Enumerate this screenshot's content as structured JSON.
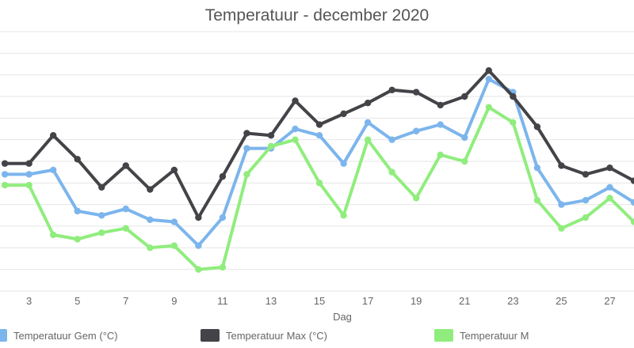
{
  "chart_data": {
    "type": "line",
    "title": "Temperatuur - december 2020",
    "xlabel": "Dag",
    "ylabel": "",
    "x": [
      2,
      3,
      4,
      5,
      6,
      7,
      8,
      9,
      10,
      11,
      12,
      13,
      14,
      15,
      16,
      17,
      18,
      19,
      20,
      21,
      22,
      23,
      24,
      25,
      26,
      27,
      28
    ],
    "x_tick_labels": [
      "3",
      "5",
      "7",
      "9",
      "11",
      "13",
      "15",
      "17",
      "19",
      "21",
      "23",
      "25",
      "27"
    ],
    "xlim": [
      1.8,
      28
    ],
    "ylim": [
      -1.0,
      11.0
    ],
    "grid": true,
    "legend_position": "bottom",
    "series": [
      {
        "name": "Temperatuur Gem (°C)",
        "color": "#7cb5ec",
        "values": [
          4.4,
          4.4,
          4.6,
          2.7,
          2.5,
          2.8,
          2.3,
          2.2,
          1.1,
          2.4,
          5.6,
          5.6,
          6.5,
          6.2,
          4.9,
          6.8,
          6.0,
          6.4,
          6.7,
          6.1,
          8.8,
          8.2,
          4.7,
          3.0,
          3.2,
          3.8,
          3.1
        ]
      },
      {
        "name": "Temperatuur Max (°C)",
        "color": "#434348",
        "values": [
          4.9,
          4.9,
          6.2,
          5.1,
          3.8,
          4.8,
          3.7,
          4.6,
          2.4,
          4.3,
          6.3,
          6.2,
          7.8,
          6.7,
          7.2,
          7.7,
          8.3,
          8.2,
          7.6,
          8.0,
          9.2,
          8.0,
          6.6,
          4.8,
          4.4,
          4.7,
          4.1
        ]
      },
      {
        "name": "Temperatuur M",
        "color": "#90ed7d",
        "values": [
          3.9,
          3.9,
          1.6,
          1.4,
          1.7,
          1.9,
          1.0,
          1.1,
          0.0,
          0.1,
          4.4,
          5.7,
          6.0,
          4.0,
          2.5,
          6.0,
          4.5,
          3.3,
          5.3,
          5.0,
          7.5,
          6.8,
          3.2,
          1.9,
          2.4,
          3.3,
          2.2
        ]
      }
    ]
  }
}
